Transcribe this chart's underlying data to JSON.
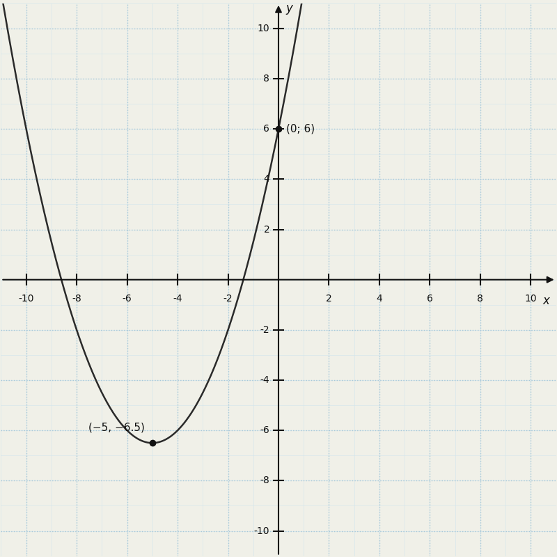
{
  "xlabel": "x",
  "ylabel": "y",
  "xlim": [
    -11,
    11
  ],
  "ylim": [
    -11,
    11
  ],
  "xticks": [
    -10,
    -8,
    -6,
    -4,
    -2,
    2,
    4,
    6,
    8,
    10
  ],
  "yticks": [
    -10,
    -8,
    -6,
    -4,
    -2,
    2,
    4,
    6,
    8,
    10
  ],
  "a": 0.5,
  "b": 5,
  "c": 6,
  "vertex_x": -5,
  "vertex_y": -6.5,
  "point1_x": 0,
  "point1_y": 6,
  "curve_color": "#2a2a2a",
  "point_color": "#111111",
  "grid_major_color": "#a8c8d8",
  "grid_minor_color": "#d0e4ec",
  "axis_color": "#111111",
  "background_color": "#f0f0e8",
  "panel_color": "#e8f0f0",
  "annotation_vertex": "(−5, −6.5)",
  "annotation_point": "(0; 6)",
  "x_range_min": -11,
  "x_range_max": 2.8
}
